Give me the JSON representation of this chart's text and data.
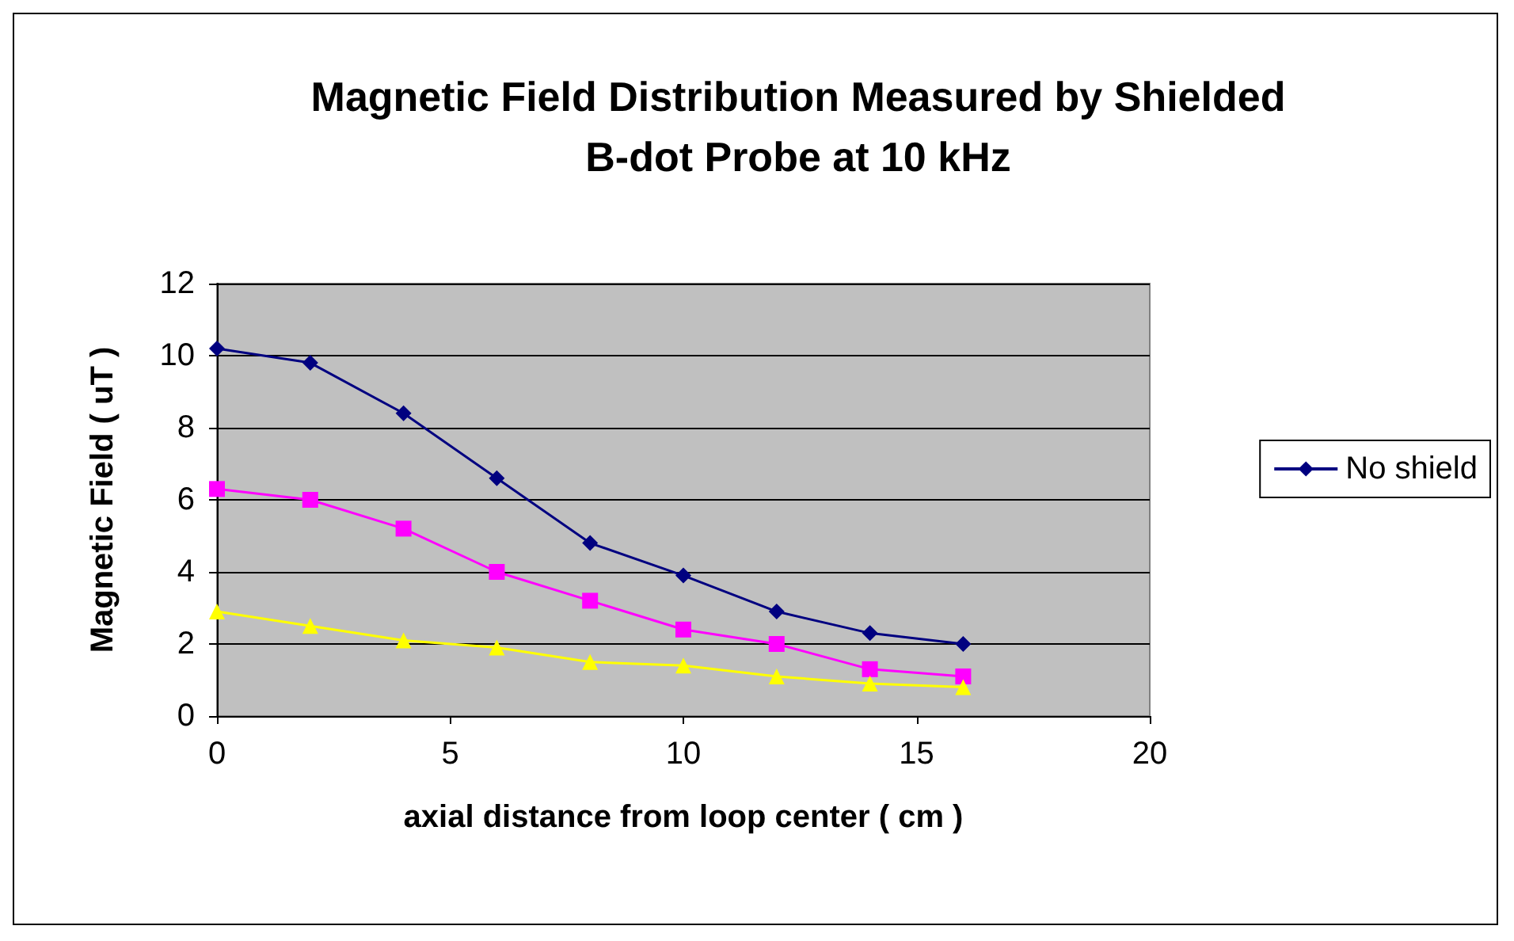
{
  "chart_data": {
    "type": "line",
    "title": "Magnetic Field Distribution Measured by Shielded\nB-dot Probe at 10 kHz",
    "xlabel": "axial distance from loop center ( cm )",
    "ylabel": "Magnetic Field ( uT )",
    "x": [
      0,
      2,
      4,
      6,
      8,
      10,
      12,
      14,
      16
    ],
    "series": [
      {
        "name": "No shield",
        "color": "#000080",
        "marker": "diamond",
        "values": [
          10.2,
          9.8,
          8.4,
          6.6,
          4.8,
          3.9,
          2.9,
          2.3,
          2.0
        ]
      },
      {
        "color": "#ff00ff",
        "marker": "square",
        "values": [
          6.3,
          6.0,
          5.2,
          4.0,
          3.2,
          2.4,
          2.0,
          1.3,
          1.1
        ]
      },
      {
        "color": "#ffff00",
        "marker": "triangle",
        "values": [
          2.9,
          2.5,
          2.1,
          1.9,
          1.5,
          1.4,
          1.1,
          0.9,
          0.8
        ]
      }
    ],
    "xlim": [
      0,
      20
    ],
    "xticks": [
      0,
      5,
      10,
      15,
      20
    ],
    "ylim": [
      0,
      12
    ],
    "yticks": [
      0,
      2,
      4,
      6,
      8,
      10,
      12
    ],
    "grid": "y",
    "legend": "right"
  }
}
